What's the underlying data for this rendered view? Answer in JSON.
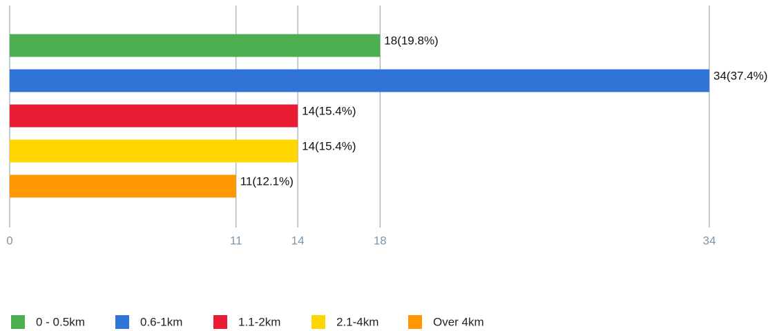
{
  "chart_data": {
    "type": "bar",
    "orientation": "horizontal",
    "categories": [
      "0 - 0.5km",
      "0.6-1km",
      "1.1-2km",
      "2.1-4km",
      "Over 4km"
    ],
    "values": [
      18,
      34,
      14,
      14,
      11
    ],
    "value_labels": [
      "18(19.8%)",
      "34(37.4%)",
      "14(15.4%)",
      "14(15.4%)",
      "11(12.1%)"
    ],
    "colors": [
      "#4caf50",
      "#3174d8",
      "#e91c33",
      "#ffd600",
      "#ff9800"
    ],
    "xlim": [
      0,
      34
    ],
    "xticks": [
      0,
      11,
      14,
      18,
      34
    ],
    "grid": true,
    "legend": "bottom-left"
  }
}
